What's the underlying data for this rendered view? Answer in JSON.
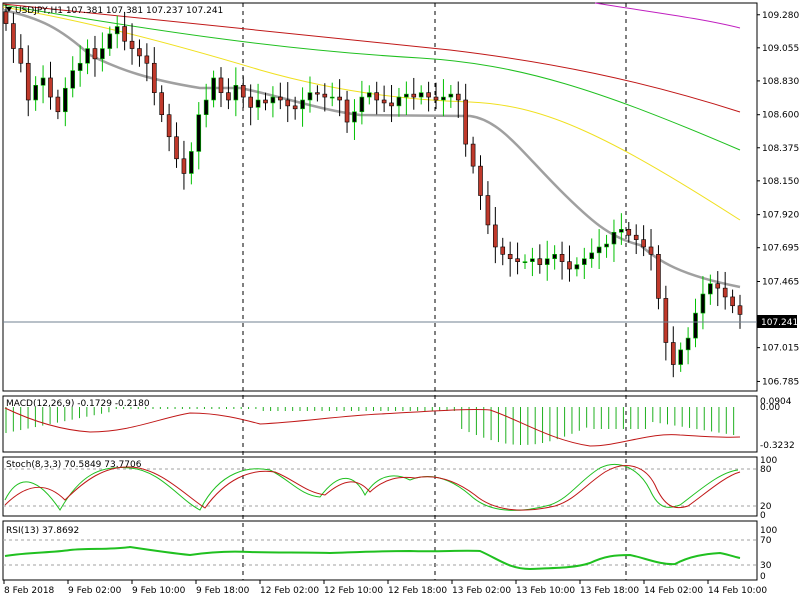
{
  "main": {
    "header": "USDJPY,H1  107.381 107.381 107.237 107.241",
    "price_axis_labels": [
      "109.280",
      "109.055",
      "108.830",
      "108.600",
      "108.375",
      "108.150",
      "107.920",
      "107.695",
      "107.465",
      "107.241",
      "107.015",
      "106.785"
    ],
    "current_price_label": "107.241",
    "ylim": [
      106.72,
      109.36
    ]
  },
  "macd": {
    "header": "MACD(12,26,9) -0.1729 -0.2180",
    "axis_labels": [
      "0.0904",
      "0.00",
      "-0.3232"
    ]
  },
  "stoch": {
    "header": "Stoch(8,3,3) 70.5849 73.7706",
    "axis_labels": [
      "100",
      "80",
      "20",
      "0"
    ]
  },
  "rsi": {
    "header": "RSI(13) 37.8692",
    "axis_labels": [
      "100",
      "70",
      "30",
      "0"
    ]
  },
  "time_axis": [
    "8 Feb 2018",
    "9 Feb 02:00",
    "9 Feb 10:00",
    "9 Feb 18:00",
    "12 Feb 02:00",
    "12 Feb 10:00",
    "12 Feb 18:00",
    "13 Feb 02:00",
    "13 Feb 10:00",
    "13 Feb 18:00",
    "14 Feb 02:00",
    "14 Feb 10:00"
  ],
  "colors": {
    "bull": "#000000",
    "bull_alt": "#00c000",
    "bear": "#c0392b",
    "ma_gray": "#a0a0a0",
    "ma_yellow": "#f0e020",
    "ma_green": "#20c020",
    "ma_red": "#c01818",
    "ma_purple": "#c020c0",
    "macd_hist": "#20b020",
    "signal": "#c01818",
    "rsi_line": "#20c020"
  },
  "chart_data": [
    {
      "type": "candlestick",
      "title": "USDJPY,H1",
      "ohlc_closes": [
        109.22,
        109.05,
        108.95,
        108.7,
        108.8,
        108.85,
        108.72,
        108.62,
        108.78,
        108.9,
        108.95,
        109.05,
        108.98,
        109.05,
        109.15,
        109.2,
        109.1,
        109.05,
        109.0,
        108.95,
        108.75,
        108.6,
        108.45,
        108.3,
        108.2,
        108.35,
        108.6,
        108.7,
        108.85,
        108.75,
        108.7,
        108.8,
        108.72,
        108.65,
        108.7,
        108.68,
        108.72,
        108.7,
        108.66,
        108.64,
        108.7,
        108.75,
        108.74,
        108.72,
        108.72,
        108.7,
        108.55,
        108.62,
        108.72,
        108.75,
        108.7,
        108.68,
        108.66,
        108.72,
        108.74,
        108.72,
        108.75,
        108.72,
        108.7,
        108.72,
        108.74,
        108.7,
        108.4,
        108.25,
        108.05,
        107.85,
        107.7,
        107.65,
        107.62,
        107.6,
        107.6,
        107.62,
        107.58,
        107.62,
        107.65,
        107.6,
        107.55,
        107.58,
        107.62,
        107.66,
        107.7,
        107.72,
        107.8,
        107.82,
        107.78,
        107.75,
        107.7,
        107.65,
        107.35,
        107.05,
        106.9,
        107.0,
        107.08,
        107.25,
        107.38,
        107.45,
        107.42,
        107.36,
        107.3,
        107.241
      ],
      "moving_averages": [
        {
          "color": "gray",
          "start": 109.3,
          "end": 107.48
        },
        {
          "color": "yellow",
          "start": 109.25,
          "end": 107.95
        },
        {
          "color": "green",
          "start": 109.3,
          "end": 108.4
        },
        {
          "color": "red",
          "start": 109.35,
          "end": 108.72
        },
        {
          "color": "purple",
          "start": 109.35,
          "end": 109.28
        }
      ],
      "y_ticks": [
        109.28,
        109.055,
        108.83,
        108.6,
        108.375,
        108.15,
        107.92,
        107.695,
        107.465,
        107.241,
        107.015,
        106.785
      ],
      "ylim": [
        106.72,
        109.36
      ]
    },
    {
      "type": "bar",
      "title": "MACD(12,26,9)",
      "values_main": -0.1729,
      "values_signal": -0.218,
      "y_ticks": [
        0.0904,
        0.0,
        -0.3232
      ]
    },
    {
      "type": "line",
      "title": "Stoch(8,3,3)",
      "main_value": 70.5849,
      "signal_value": 73.7706,
      "y_ticks": [
        100,
        80,
        20,
        0
      ]
    },
    {
      "type": "line",
      "title": "RSI(13)",
      "value": 37.8692,
      "y_ticks": [
        100,
        70,
        30,
        0
      ]
    }
  ]
}
